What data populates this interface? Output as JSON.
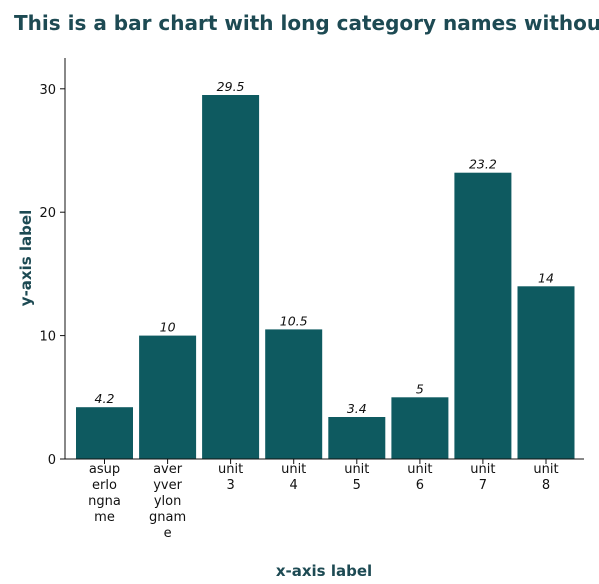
{
  "chart_data": {
    "type": "bar",
    "title": "This is a bar chart with long category names without",
    "xlabel": "x-axis label",
    "ylabel": "y-axis label",
    "categories": [
      [
        "asup",
        "erlo",
        "ngna",
        "me"
      ],
      [
        "aver",
        "yver",
        "ylon",
        "gnam",
        "e"
      ],
      [
        "unit",
        "3"
      ],
      [
        "unit",
        "4"
      ],
      [
        "unit",
        "5"
      ],
      [
        "unit",
        "6"
      ],
      [
        "unit",
        "7"
      ],
      [
        "unit",
        "8"
      ]
    ],
    "values": [
      4.2,
      10,
      29.5,
      10.5,
      3.4,
      5,
      23.2,
      14
    ],
    "data_labels": [
      "4.2",
      "10",
      "29.5",
      "10.5",
      "3.4",
      "5",
      "23.2",
      "14"
    ],
    "yticks": [
      0,
      10,
      20,
      30
    ],
    "ytick_labels": [
      "0",
      "10",
      "20",
      "30"
    ],
    "ylim": [
      0,
      32.5
    ],
    "bar_color": "#0e5a60",
    "title_color": "#1d4a53",
    "grid": false,
    "legend": "none"
  }
}
